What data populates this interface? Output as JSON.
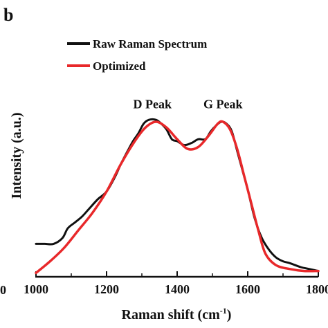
{
  "panel_label": "b",
  "chart_data": {
    "type": "line",
    "xlabel": "Raman shift (cm",
    "xlabel_sup": "-1",
    "xlabel_close": ")",
    "ylabel": "Intensity (a.u.)",
    "xlim": [
      1000,
      1800
    ],
    "ylim": [
      0,
      1
    ],
    "xticks": [
      {
        "value": 1000,
        "label": "1000"
      },
      {
        "value": 1200,
        "label": "1200"
      },
      {
        "value": 1400,
        "label": "1400"
      },
      {
        "value": 1600,
        "label": "1600"
      },
      {
        "value": 1800,
        "label": "1800"
      }
    ],
    "edge_tick_fragment": "0",
    "legend_position": "top-left",
    "annotations": [
      {
        "text": "D Peak",
        "x": 1330,
        "y": 0.87
      },
      {
        "text": "G Peak",
        "x": 1530,
        "y": 0.87
      }
    ],
    "series": [
      {
        "name": "Raw Raman Spectrum",
        "color": "#111111",
        "points": [
          [
            1000,
            0.17
          ],
          [
            1025,
            0.17
          ],
          [
            1050,
            0.17
          ],
          [
            1075,
            0.2
          ],
          [
            1090,
            0.25
          ],
          [
            1110,
            0.28
          ],
          [
            1130,
            0.31
          ],
          [
            1150,
            0.35
          ],
          [
            1175,
            0.4
          ],
          [
            1200,
            0.44
          ],
          [
            1225,
            0.52
          ],
          [
            1240,
            0.58
          ],
          [
            1260,
            0.65
          ],
          [
            1275,
            0.7
          ],
          [
            1290,
            0.74
          ],
          [
            1305,
            0.79
          ],
          [
            1320,
            0.81
          ],
          [
            1340,
            0.81
          ],
          [
            1355,
            0.79
          ],
          [
            1370,
            0.76
          ],
          [
            1385,
            0.71
          ],
          [
            1400,
            0.7
          ],
          [
            1420,
            0.68
          ],
          [
            1440,
            0.69
          ],
          [
            1460,
            0.71
          ],
          [
            1480,
            0.71
          ],
          [
            1495,
            0.75
          ],
          [
            1510,
            0.78
          ],
          [
            1525,
            0.8
          ],
          [
            1540,
            0.79
          ],
          [
            1555,
            0.75
          ],
          [
            1570,
            0.65
          ],
          [
            1585,
            0.55
          ],
          [
            1600,
            0.45
          ],
          [
            1620,
            0.3
          ],
          [
            1640,
            0.2
          ],
          [
            1660,
            0.14
          ],
          [
            1680,
            0.1
          ],
          [
            1700,
            0.08
          ],
          [
            1720,
            0.07
          ],
          [
            1750,
            0.05
          ],
          [
            1775,
            0.04
          ],
          [
            1800,
            0.03
          ]
        ]
      },
      {
        "name": "Optimized",
        "color": "#e8282a",
        "points": [
          [
            1000,
            0.02
          ],
          [
            1040,
            0.08
          ],
          [
            1080,
            0.15
          ],
          [
            1120,
            0.24
          ],
          [
            1160,
            0.33
          ],
          [
            1200,
            0.44
          ],
          [
            1240,
            0.58
          ],
          [
            1280,
            0.7
          ],
          [
            1310,
            0.77
          ],
          [
            1340,
            0.8
          ],
          [
            1370,
            0.77
          ],
          [
            1400,
            0.71
          ],
          [
            1430,
            0.66
          ],
          [
            1460,
            0.67
          ],
          [
            1490,
            0.73
          ],
          [
            1515,
            0.79
          ],
          [
            1530,
            0.8
          ],
          [
            1550,
            0.76
          ],
          [
            1570,
            0.66
          ],
          [
            1590,
            0.52
          ],
          [
            1610,
            0.38
          ],
          [
            1630,
            0.24
          ],
          [
            1650,
            0.12
          ],
          [
            1680,
            0.06
          ],
          [
            1720,
            0.04
          ],
          [
            1760,
            0.03
          ],
          [
            1800,
            0.03
          ]
        ]
      }
    ]
  }
}
